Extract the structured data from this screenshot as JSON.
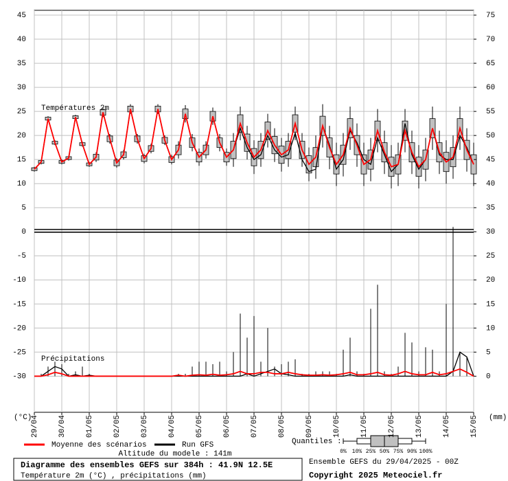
{
  "chart_data": {
    "type": "box",
    "title": "Diagramme des ensembles GEFS sur 384h : 41.9N 12.5E",
    "subtitle": "Température 2m (°C) , précipitations (mm)",
    "ylabel": "(°C)",
    "y2label": "(mm)",
    "annotations": [
      "Températures 2m",
      "Précipitations"
    ],
    "altitude": "Altitude du modele : 141m",
    "run": "Ensemble GEFS du 29/04/2025 - 00Z",
    "copyright": "Copyright 2025 Meteociel.fr",
    "quantiles": {
      "label": "Quantiles :",
      "levels": [
        "0%",
        "10%",
        "25%",
        "50%",
        "75%",
        "90%",
        "100%"
      ]
    },
    "grid": true,
    "box_color": "#c0c0c0",
    "xlim": [
      0,
      384
    ],
    "xticks": [
      {
        "value": 0,
        "label": "29/04"
      },
      {
        "value": 24,
        "label": "30/04"
      },
      {
        "value": 48,
        "label": "01/05"
      },
      {
        "value": 72,
        "label": "02/05"
      },
      {
        "value": 96,
        "label": "03/05"
      },
      {
        "value": 120,
        "label": "04/05"
      },
      {
        "value": 144,
        "label": "05/05"
      },
      {
        "value": 168,
        "label": "06/05"
      },
      {
        "value": 192,
        "label": "07/05"
      },
      {
        "value": 216,
        "label": "08/05"
      },
      {
        "value": 240,
        "label": "09/05"
      },
      {
        "value": 264,
        "label": "10/05"
      },
      {
        "value": 288,
        "label": "11/05"
      },
      {
        "value": 312,
        "label": "12/05"
      },
      {
        "value": 336,
        "label": "13/05"
      },
      {
        "value": 360,
        "label": "14/05"
      },
      {
        "value": 384,
        "label": "15/05"
      }
    ],
    "ylim": [
      -37.5,
      46
    ],
    "yticks": [
      -30,
      -25,
      -20,
      -15,
      -10,
      -5,
      0,
      5,
      10,
      15,
      20,
      25,
      30,
      35,
      40,
      45
    ],
    "y2lim": [
      -7.5,
      76
    ],
    "y2ticks": [
      0,
      5,
      10,
      15,
      20,
      25,
      30,
      35,
      40,
      45,
      50,
      55,
      60,
      65,
      70,
      75
    ],
    "x": [
      0,
      6,
      12,
      18,
      24,
      30,
      36,
      42,
      48,
      54,
      60,
      66,
      72,
      78,
      84,
      90,
      96,
      102,
      108,
      114,
      120,
      126,
      132,
      138,
      144,
      150,
      156,
      162,
      168,
      174,
      180,
      186,
      192,
      198,
      204,
      210,
      216,
      222,
      228,
      234,
      240,
      246,
      252,
      258,
      264,
      270,
      276,
      282,
      288,
      294,
      300,
      306,
      312,
      318,
      324,
      330,
      336,
      342,
      348,
      354,
      360,
      366,
      372,
      378,
      384
    ],
    "temperature": {
      "min": [
        12.5,
        14,
        23,
        18,
        14,
        14.8,
        23.3,
        17.7,
        13.5,
        14.5,
        23.8,
        18.3,
        13.3,
        15,
        24.5,
        18.3,
        14.2,
        16.3,
        24.5,
        18,
        14,
        15.2,
        22.7,
        16.7,
        13.7,
        15.2,
        22.2,
        16.7,
        13.7,
        13.5,
        19,
        15,
        12,
        13.5,
        17.5,
        14.5,
        12.5,
        13.5,
        19,
        13.5,
        10.5,
        11,
        17.5,
        13,
        9.5,
        11.5,
        17,
        13.5,
        9.5,
        10.5,
        16.5,
        12,
        9,
        9.5,
        16.5,
        12,
        9,
        10.5,
        17,
        12,
        10,
        11,
        17,
        12.5,
        9.5
      ],
      "q25": [
        12.7,
        14.2,
        23.2,
        18.2,
        14.2,
        15,
        23.5,
        17.9,
        13.7,
        14.9,
        24.2,
        18.7,
        13.7,
        15.4,
        24.9,
        18.7,
        14.6,
        16.7,
        24.9,
        18.4,
        14.4,
        16,
        23.5,
        17.5,
        14.5,
        16,
        23,
        17.5,
        14.5,
        15.2,
        20.7,
        16.7,
        13.7,
        15.2,
        19.2,
        16.2,
        14.2,
        15.2,
        20.7,
        15.2,
        12.2,
        13.5,
        20,
        15.5,
        12,
        14,
        19.5,
        16,
        12,
        13,
        19,
        14.5,
        11.5,
        12,
        19,
        14.5,
        11.5,
        13,
        19.5,
        14.5,
        12.5,
        13.5,
        19.5,
        15,
        12
      ],
      "q75": [
        13.3,
        14.8,
        23.8,
        18.8,
        14.8,
        15.6,
        24.1,
        18.5,
        14.3,
        16.1,
        25.4,
        19.9,
        14.9,
        16.6,
        26.1,
        19.9,
        15.8,
        17.9,
        26.1,
        19.6,
        15.6,
        18,
        25.5,
        19.5,
        16.5,
        18,
        25,
        19.5,
        16.5,
        18.8,
        24.3,
        20.3,
        17.3,
        18.8,
        22.8,
        19.8,
        17.8,
        18.8,
        24.3,
        18.8,
        15.8,
        17.5,
        24,
        19.5,
        16,
        18,
        23.5,
        20,
        16,
        17,
        23,
        18.5,
        15.5,
        16,
        23,
        18.5,
        15.5,
        17,
        23.5,
        18.5,
        16.5,
        17.5,
        23.5,
        19,
        16
      ],
      "max": [
        13.5,
        15,
        24,
        19,
        15,
        15.8,
        24.3,
        18.7,
        14.5,
        16.5,
        25.8,
        20.3,
        15.3,
        17,
        26.5,
        20.3,
        16.2,
        18.3,
        26.5,
        20,
        16,
        18.8,
        26.3,
        20.3,
        17.3,
        18.8,
        25.8,
        20.3,
        17.3,
        20.5,
        26,
        22,
        19,
        20.5,
        24.5,
        21.5,
        19.5,
        20.5,
        26,
        20.5,
        17.5,
        20,
        26.5,
        22,
        18.5,
        20.5,
        26,
        22.5,
        18.5,
        19.5,
        25.5,
        21,
        18,
        18.5,
        25.5,
        21,
        18,
        19.5,
        26,
        21,
        19,
        20,
        26,
        21.5,
        18.5
      ]
    },
    "series": [
      {
        "name": "Moyenne des scénarios",
        "color": "#ff0000",
        "values": [
          13,
          14.5,
          23.5,
          18.5,
          14.5,
          15.3,
          23.8,
          18.2,
          14,
          15.5,
          24.8,
          19.3,
          14.3,
          16,
          25.5,
          19.3,
          15.2,
          17.3,
          25.5,
          19,
          15,
          17,
          24.5,
          18.5,
          15.5,
          17,
          24,
          18.5,
          15.5,
          17,
          22.5,
          18.5,
          15.5,
          17,
          21,
          18,
          16,
          17,
          22.5,
          17,
          14,
          15.5,
          22,
          17.5,
          14,
          16,
          21.5,
          18,
          14,
          15,
          21,
          16.5,
          13.5,
          14,
          21,
          16.5,
          13.5,
          15,
          21.5,
          16.5,
          14.5,
          15.5,
          21.5,
          17,
          14
        ],
        "precip": [
          0,
          0,
          0.3,
          0.8,
          0.5,
          0,
          0,
          0,
          0,
          0,
          0,
          0,
          0,
          0,
          0,
          0,
          0,
          0,
          0,
          0,
          0,
          0.2,
          0,
          0.2,
          0.3,
          0.2,
          0.4,
          0.2,
          0.3,
          0.5,
          1,
          0.5,
          0.5,
          0.8,
          0.8,
          0.5,
          0.5,
          0.8,
          0.5,
          0.3,
          0.2,
          0.2,
          0.3,
          0.2,
          0.3,
          0.5,
          0.8,
          0.3,
          0.3,
          0.5,
          0.8,
          0.3,
          0.2,
          0.5,
          1,
          0.5,
          0.3,
          0.3,
          0.8,
          0.3,
          0.5,
          1,
          1.5,
          0.8,
          0
        ]
      },
      {
        "name": "Run GFS",
        "color": "#000000",
        "values": [
          13,
          14.5,
          23.5,
          18.5,
          14.5,
          15.3,
          23.8,
          18.2,
          14,
          15.5,
          24.8,
          19.3,
          14.3,
          16,
          25.5,
          19.3,
          15.2,
          17.3,
          25.5,
          19,
          15,
          17,
          24.5,
          18.5,
          15.5,
          17,
          24,
          18.5,
          15.5,
          17,
          21.5,
          17.5,
          15,
          16,
          20,
          17,
          15.5,
          16,
          20.5,
          15,
          12.5,
          13,
          22,
          18,
          13,
          15,
          21,
          18.5,
          15,
          14,
          19.5,
          16,
          12.5,
          14,
          22.5,
          16,
          13,
          15,
          21.5,
          16,
          15,
          15,
          20,
          17.5,
          14
        ],
        "precip": [
          0,
          0,
          1,
          2,
          1.5,
          0,
          0.3,
          0,
          0.2,
          0,
          0,
          0,
          0,
          0,
          0,
          0,
          0,
          0,
          0,
          0,
          0,
          0,
          0,
          0,
          0,
          0,
          0,
          0,
          0,
          0,
          0,
          0.5,
          0,
          0.5,
          1,
          1.5,
          0.5,
          0.3,
          0,
          0,
          0,
          0,
          0,
          0,
          0,
          0,
          0.3,
          0,
          0,
          0,
          0,
          0,
          0,
          0,
          0,
          0,
          0,
          0,
          0,
          0,
          0,
          1,
          5,
          4,
          0
        ]
      }
    ],
    "precip_max": [
      0,
      0.5,
      2,
      3,
      2.5,
      0.5,
      1,
      2,
      0.5,
      0,
      0,
      0,
      0,
      0,
      0,
      0,
      0,
      0,
      0,
      0,
      0,
      0.5,
      0.5,
      2,
      3,
      3,
      2.5,
      3,
      1,
      5,
      13,
      8,
      12.5,
      3,
      10,
      2,
      2.5,
      3,
      3.5,
      0.5,
      0.5,
      1,
      1,
      1,
      0.5,
      5.5,
      8,
      1,
      0.5,
      14,
      19,
      1,
      0.5,
      2,
      9,
      7,
      1,
      6,
      5.5,
      1,
      15,
      31,
      5,
      4,
      0
    ]
  }
}
